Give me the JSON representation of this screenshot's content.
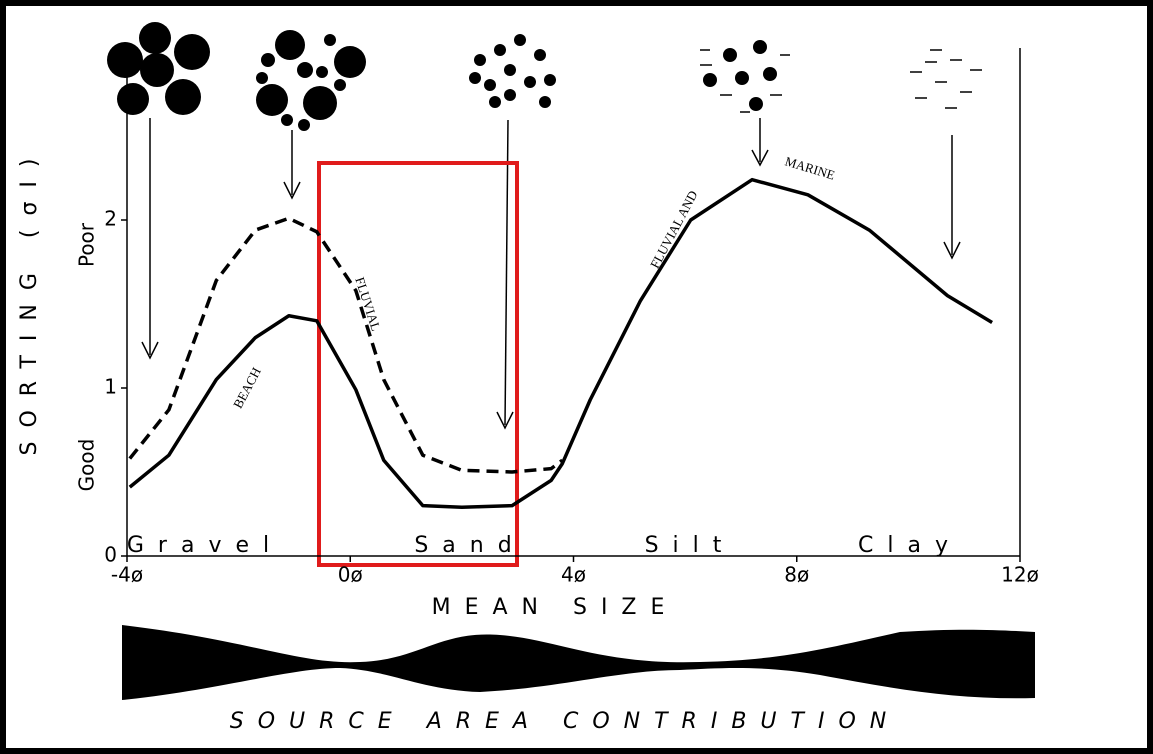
{
  "chart_data": {
    "type": "line",
    "y_label": "SORTING (σI)",
    "poor_label": "Poor",
    "good_label": "Good",
    "x_label": "MEAN SIZE",
    "source_label": "SOURCE AREA CONTRIBUTION",
    "annotations": [
      "BEACH",
      "FLUVIAL",
      "FLUVIAL AND",
      "MARINE"
    ],
    "size_classes": [
      "Gravel",
      "Sand",
      "Silt",
      "Clay"
    ],
    "x": [
      -3.95,
      -3.25,
      -2.4,
      -1.7,
      -1.1,
      -0.6,
      0.1,
      0.6,
      1.3,
      2.0,
      2.9,
      3.6,
      3.8,
      4.3,
      5.2,
      6.1,
      7.2,
      8.2,
      9.3,
      10.7,
      11.5
    ],
    "series": [
      {
        "color": "#000000",
        "dashed": false,
        "values": [
          0.41,
          0.6,
          1.05,
          1.3,
          1.43,
          1.4,
          0.99,
          0.57,
          0.3,
          0.29,
          0.3,
          0.45,
          0.55,
          0.93,
          1.52,
          2.0,
          2.24,
          2.15,
          1.94,
          1.55,
          1.39
        ]
      },
      {
        "color": "#000000",
        "dashed": true,
        "values": [
          0.58,
          0.87,
          1.64,
          1.94,
          2.01,
          1.93,
          1.58,
          1.05,
          0.6,
          0.51,
          0.5,
          0.52,
          0.57,
          null,
          null,
          null,
          null,
          null,
          null,
          null,
          null
        ]
      }
    ],
    "xlim": [
      -4,
      12
    ],
    "ylim": [
      0,
      3
    ],
    "xticks": [
      {
        "value": -4,
        "label": "-4ø"
      },
      {
        "value": 0,
        "label": "0ø"
      },
      {
        "value": 4,
        "label": "4ø"
      },
      {
        "value": 8,
        "label": "8ø"
      },
      {
        "value": 12,
        "label": "12ø"
      }
    ],
    "yticks": [
      0,
      1,
      2
    ]
  }
}
